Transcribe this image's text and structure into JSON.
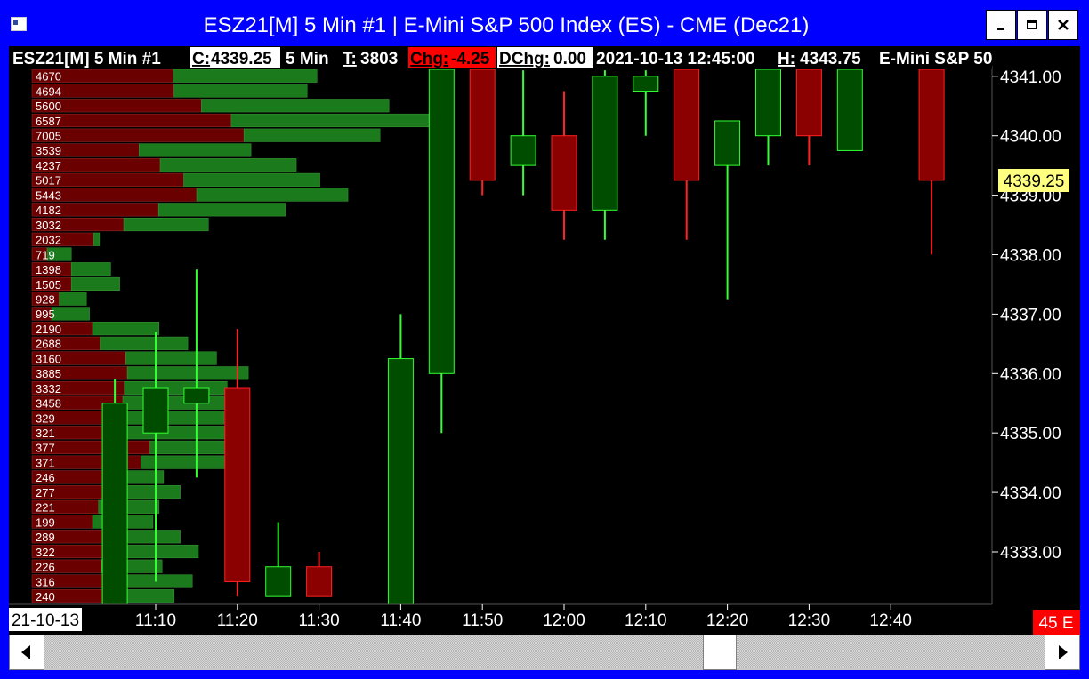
{
  "window": {
    "title": "ESZ21[M]  5 Min   #1 | E-Mini S&P 500 Index (ES) - CME (Dec21)",
    "minimize_glyph": "–",
    "maximize_glyph": "■",
    "close_glyph": "✕"
  },
  "header": {
    "symbol": "ESZ21[M]  5 Min  #1",
    "close_label": "C:",
    "close_value": "4339.25",
    "interval": "5 Min",
    "ticks_label": "T:",
    "ticks_value": "3803",
    "chg_label": "Chg:",
    "chg_value": "-4.25",
    "dchg_label": "DChg:",
    "dchg_value": "0.00",
    "datetime": "2021-10-13  12:45:00",
    "high_label": "H:",
    "high_value": "4343.75",
    "instrument": "E-Mini S&P 50"
  },
  "time_axis": {
    "date_label": "21-10-13",
    "countdown": "45 E"
  },
  "scrollbar": {
    "left_icon": "arrow-left-icon",
    "right_icon": "arrow-right-icon"
  },
  "colors": {
    "background": "#000000",
    "up_fill": "#004d00",
    "up_wick": "#33ff33",
    "down_fill": "#8b0000",
    "down_wick": "#ff2222",
    "profile_sell": "#6b0000",
    "profile_buy": "#1b7a1b",
    "last_price_tag": "#ffff80",
    "frame": "#0000ff"
  },
  "chart_data": {
    "type": "candlestick",
    "price_axis": {
      "ylim": [
        4332.25,
        4341.4
      ],
      "ticks": [
        "4333.00",
        "4334.00",
        "4335.00",
        "4336.00",
        "4337.00",
        "4338.00",
        "4339.00",
        "4340.00",
        "4341.00"
      ],
      "last_price": "4339.25"
    },
    "time_labels": [
      "11:10",
      "11:20",
      "11:30",
      "11:40",
      "11:50",
      "12:00",
      "12:10",
      "12:20",
      "12:30",
      "12:40"
    ],
    "candles": [
      {
        "time": "11:05",
        "open": 4332.0,
        "high": 4335.9,
        "low": 4332.0,
        "close": 4335.5
      },
      {
        "time": "11:10",
        "open": 4335.0,
        "high": 4336.7,
        "low": 4332.5,
        "close": 4335.75
      },
      {
        "time": "11:15",
        "open": 4335.5,
        "high": 4337.75,
        "low": 4334.25,
        "close": 4335.75
      },
      {
        "time": "11:20",
        "open": 4335.75,
        "high": 4336.75,
        "low": 4332.25,
        "close": 4332.5
      },
      {
        "time": "11:25",
        "open": 4332.25,
        "high": 4333.5,
        "low": 4332.25,
        "close": 4332.75
      },
      {
        "time": "11:30",
        "open": 4332.75,
        "high": 4333.0,
        "low": 4332.25,
        "close": 4332.25
      },
      {
        "time": "11:40",
        "open": 4332.0,
        "high": 4337.0,
        "low": 4332.0,
        "close": 4336.25
      },
      {
        "time": "11:45",
        "open": 4336.0,
        "high": 4341.5,
        "low": 4335.0,
        "close": 4341.5
      },
      {
        "time": "11:50",
        "open": 4341.5,
        "high": 4341.5,
        "low": 4339.0,
        "close": 4339.25
      },
      {
        "time": "11:55",
        "open": 4339.5,
        "high": 4341.1,
        "low": 4339.0,
        "close": 4340.0
      },
      {
        "time": "12:00",
        "open": 4340.0,
        "high": 4340.75,
        "low": 4338.25,
        "close": 4338.75
      },
      {
        "time": "12:05",
        "open": 4338.75,
        "high": 4341.1,
        "low": 4338.25,
        "close": 4341.0
      },
      {
        "time": "12:10",
        "open": 4340.75,
        "high": 4341.1,
        "low": 4340.0,
        "close": 4341.0
      },
      {
        "time": "12:15",
        "open": 4341.5,
        "high": 4341.5,
        "low": 4338.25,
        "close": 4339.25
      },
      {
        "time": "12:20",
        "open": 4339.5,
        "high": 4340.25,
        "low": 4337.25,
        "close": 4340.25
      },
      {
        "time": "12:25",
        "open": 4340.0,
        "high": 4341.5,
        "low": 4339.5,
        "close": 4341.5
      },
      {
        "time": "12:30",
        "open": 4341.5,
        "high": 4341.5,
        "low": 4339.5,
        "close": 4340.0
      },
      {
        "time": "12:35",
        "open": 4339.75,
        "high": 4341.5,
        "low": 4339.75,
        "close": 4341.5
      },
      {
        "time": "12:45",
        "open": 4341.5,
        "high": 4341.5,
        "low": 4338.0,
        "close": 4339.25
      }
    ],
    "volume_profile": [
      {
        "price": 4341.0,
        "label": "4670",
        "sell": 4670,
        "buy": 4750
      },
      {
        "price": 4340.75,
        "label": "4694",
        "sell": 4694,
        "buy": 4400
      },
      {
        "price": 4340.5,
        "label": "5600",
        "sell": 5600,
        "buy": 6200
      },
      {
        "price": 4340.25,
        "label": "6587",
        "sell": 6587,
        "buy": 6600
      },
      {
        "price": 4340.0,
        "label": "7005",
        "sell": 7005,
        "buy": 4500
      },
      {
        "price": 4339.75,
        "label": "3539",
        "sell": 3539,
        "buy": 3700
      },
      {
        "price": 4339.5,
        "label": "4237",
        "sell": 4237,
        "buy": 4500
      },
      {
        "price": 4339.25,
        "label": "5017",
        "sell": 5017,
        "buy": 4500
      },
      {
        "price": 4339.0,
        "label": "5443",
        "sell": 5443,
        "buy": 5000
      },
      {
        "price": 4338.75,
        "label": "4182",
        "sell": 4182,
        "buy": 4200
      },
      {
        "price": 4338.5,
        "label": "3032",
        "sell": 3032,
        "buy": 2800
      },
      {
        "price": 4338.25,
        "label": "2032",
        "sell": 2032,
        "buy": 200
      },
      {
        "price": 4338.0,
        "label": "719",
        "sell": 500,
        "buy": 800
      },
      {
        "price": 4337.75,
        "label": "1398",
        "sell": 1300,
        "buy": 1300
      },
      {
        "price": 4337.5,
        "label": "1505",
        "sell": 1300,
        "buy": 1600
      },
      {
        "price": 4337.25,
        "label": "928",
        "sell": 900,
        "buy": 900
      },
      {
        "price": 4337.0,
        "label": "995",
        "sell": 650,
        "buy": 1250
      },
      {
        "price": 4336.75,
        "label": "2190",
        "sell": 2000,
        "buy": 2200
      },
      {
        "price": 4336.5,
        "label": "2688",
        "sell": 2250,
        "buy": 2900
      },
      {
        "price": 4336.25,
        "label": "3160",
        "sell": 3100,
        "buy": 3000
      },
      {
        "price": 4336.0,
        "label": "3885",
        "sell": 3150,
        "buy": 4000
      },
      {
        "price": 4335.75,
        "label": "3332",
        "sell": 3050,
        "buy": 3400
      },
      {
        "price": 4335.5,
        "label": "3458",
        "sell": 3000,
        "buy": 3800
      },
      {
        "price": 4335.25,
        "label": "329",
        "sell": 2950,
        "buy": 3400
      },
      {
        "price": 4335.0,
        "label": "321",
        "sell": 3000,
        "buy": 3400
      },
      {
        "price": 4334.75,
        "label": "377",
        "sell": 3900,
        "buy": 3300
      },
      {
        "price": 4334.5,
        "label": "371",
        "sell": 3600,
        "buy": 3600
      },
      {
        "price": 4334.25,
        "label": "246",
        "sell": 2350,
        "buy": 2000
      },
      {
        "price": 4334.0,
        "label": "277",
        "sell": 2400,
        "buy": 2500
      },
      {
        "price": 4333.75,
        "label": "221",
        "sell": 2200,
        "buy": 2000
      },
      {
        "price": 4333.5,
        "label": "199",
        "sell": 2000,
        "buy": 2000
      },
      {
        "price": 4333.25,
        "label": "289",
        "sell": 2600,
        "buy": 2300
      },
      {
        "price": 4333.0,
        "label": "322",
        "sell": 2700,
        "buy": 2800
      },
      {
        "price": 4332.75,
        "label": "226",
        "sell": 2300,
        "buy": 2000
      },
      {
        "price": 4332.5,
        "label": "316",
        "sell": 3100,
        "buy": 2200
      },
      {
        "price": 4332.25,
        "label": "240",
        "sell": 2400,
        "buy": 2300
      }
    ]
  }
}
